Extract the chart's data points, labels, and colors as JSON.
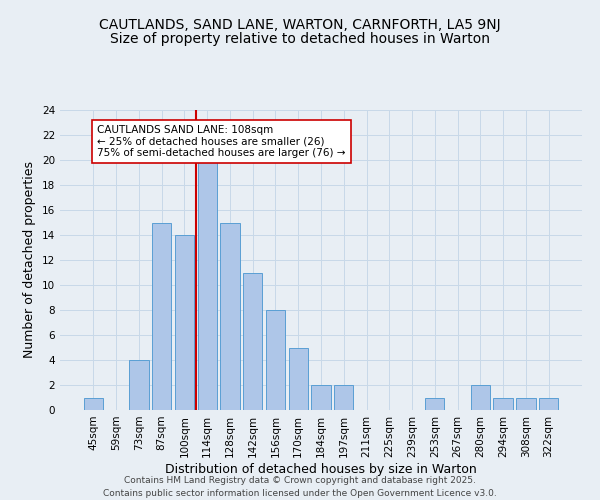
{
  "title1": "CAUTLANDS, SAND LANE, WARTON, CARNFORTH, LA5 9NJ",
  "title2": "Size of property relative to detached houses in Warton",
  "xlabel": "Distribution of detached houses by size in Warton",
  "ylabel": "Number of detached properties",
  "categories": [
    "45sqm",
    "59sqm",
    "73sqm",
    "87sqm",
    "100sqm",
    "114sqm",
    "128sqm",
    "142sqm",
    "156sqm",
    "170sqm",
    "184sqm",
    "197sqm",
    "211sqm",
    "225sqm",
    "239sqm",
    "253sqm",
    "267sqm",
    "280sqm",
    "294sqm",
    "308sqm",
    "322sqm"
  ],
  "values": [
    1,
    0,
    4,
    15,
    14,
    20,
    15,
    11,
    8,
    5,
    2,
    2,
    0,
    0,
    0,
    1,
    0,
    2,
    1,
    1,
    1
  ],
  "bar_color": "#aec6e8",
  "bar_edge_color": "#5a9fd4",
  "vline_x": 4.5,
  "vline_color": "#cc0000",
  "annotation_text": "CAUTLANDS SAND LANE: 108sqm\n← 25% of detached houses are smaller (26)\n75% of semi-detached houses are larger (76) →",
  "annotation_box_color": "#ffffff",
  "annotation_box_edge": "#cc0000",
  "ylim": [
    0,
    24
  ],
  "yticks": [
    0,
    2,
    4,
    6,
    8,
    10,
    12,
    14,
    16,
    18,
    20,
    22,
    24
  ],
  "grid_color": "#c8d8e8",
  "background_color": "#e8eef4",
  "footer_text": "Contains HM Land Registry data © Crown copyright and database right 2025.\nContains public sector information licensed under the Open Government Licence v3.0.",
  "title1_fontsize": 10,
  "title2_fontsize": 10,
  "xlabel_fontsize": 9,
  "ylabel_fontsize": 9,
  "tick_fontsize": 7.5,
  "annotation_fontsize": 7.5,
  "footer_fontsize": 6.5
}
